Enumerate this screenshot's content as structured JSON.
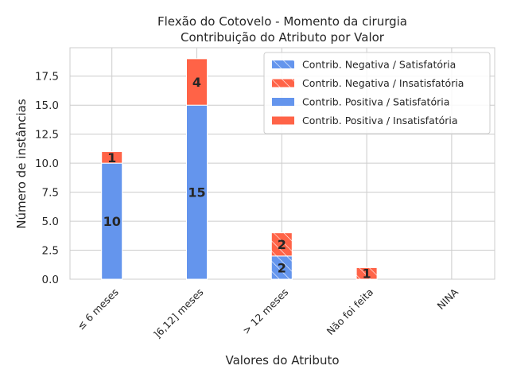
{
  "chart_data": {
    "type": "bar",
    "stacked": true,
    "title": "Flexão do Cotovelo - Momento da cirurgia",
    "subtitle": "Contribuição do Atributo por Valor",
    "xlabel": "Valores do Atributo",
    "ylabel": "Número de instâncias",
    "categories": [
      "≤ 6 meses",
      "]6,12] meses",
      "> 12 meses",
      "Não foi feita",
      "NINA"
    ],
    "ylim": [
      0,
      19.95
    ],
    "yticks": [
      0.0,
      2.5,
      5.0,
      7.5,
      10.0,
      12.5,
      15.0,
      17.5
    ],
    "ytick_labels": [
      "0.0",
      "2.5",
      "5.0",
      "7.5",
      "10.0",
      "12.5",
      "15.0",
      "17.5"
    ],
    "grid": true,
    "legend_position": "top-right",
    "colors": {
      "satisfatoria": "#6495ED",
      "insatisfatoria": "#FF6347"
    },
    "series": [
      {
        "name": "Contrib. Negativa / Satisfatória",
        "color": "#6495ED",
        "hatch": true,
        "values": [
          0,
          0,
          2,
          0,
          0
        ]
      },
      {
        "name": "Contrib. Negativa / Insatisfatória",
        "color": "#FF6347",
        "hatch": true,
        "values": [
          0,
          0,
          2,
          1,
          0
        ]
      },
      {
        "name": "Contrib. Positiva / Satisfatória",
        "color": "#6495ED",
        "hatch": false,
        "values": [
          10,
          15,
          0,
          0,
          0
        ]
      },
      {
        "name": "Contrib. Positiva / Insatisfatória",
        "color": "#FF6347",
        "hatch": false,
        "values": [
          1,
          4,
          0,
          0,
          0
        ]
      }
    ]
  }
}
